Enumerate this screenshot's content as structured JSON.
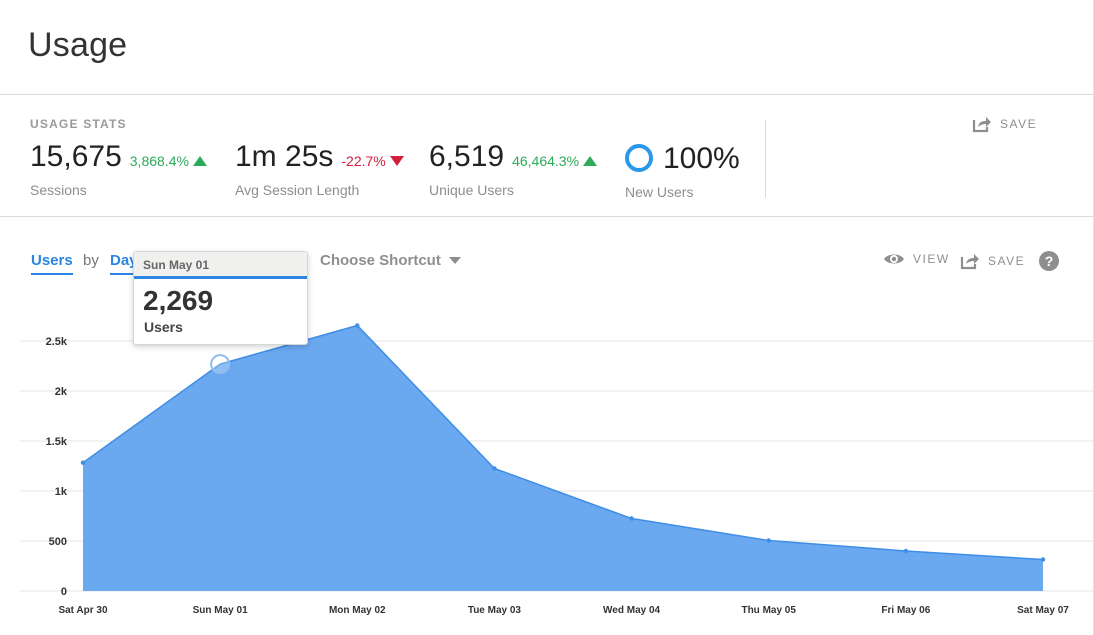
{
  "page": {
    "title": "Usage"
  },
  "usage_stats": {
    "label": "USAGE STATS",
    "save_label": "SAVE",
    "stats": [
      {
        "value": "15,675",
        "delta": "3,868.4%",
        "direction": "up",
        "label": "Sessions"
      },
      {
        "value": "1m 25s",
        "delta": "-22.7%",
        "direction": "down",
        "label": "Avg Session Length"
      },
      {
        "value": "6,519",
        "delta": "46,464.3%",
        "direction": "up",
        "label": "Unique Users"
      },
      {
        "value": "100%",
        "label": "New Users",
        "icon": "donut-ring-icon"
      }
    ]
  },
  "controls": {
    "metric_tab": "Users",
    "by_text": "by",
    "interval_tab": "Day",
    "shortcut_label": "Choose Shortcut",
    "view_label": "VIEW",
    "save_label": "SAVE",
    "help_label": "?"
  },
  "tooltip": {
    "date": "Sun May 01",
    "value": "2,269",
    "label": "Users"
  },
  "colors": {
    "accent": "#2a86e0",
    "area_fill": "#6aa8f0",
    "positive": "#2eaa5b",
    "negative": "#d0203c",
    "ring": "#2a98e8"
  },
  "chart_data": {
    "type": "area",
    "categories": [
      "Sat Apr 30",
      "Sun May 01",
      "Mon May 02",
      "Tue May 03",
      "Wed May 04",
      "Thu May 05",
      "Fri May 06",
      "Sat May 07"
    ],
    "series": [
      {
        "values": [
          1283,
          2269,
          2655,
          1225,
          725,
          505,
          400,
          315
        ]
      }
    ],
    "y_ticks": [
      0,
      500,
      1000,
      1500,
      2000,
      2500
    ],
    "y_tick_labels": [
      "0",
      "500",
      "1k",
      "1.5k",
      "2k",
      "2.5k"
    ],
    "ylim": [
      0,
      2700
    ],
    "highlight_index": 1,
    "grid": true,
    "title": "",
    "xlabel": "",
    "ylabel": ""
  }
}
